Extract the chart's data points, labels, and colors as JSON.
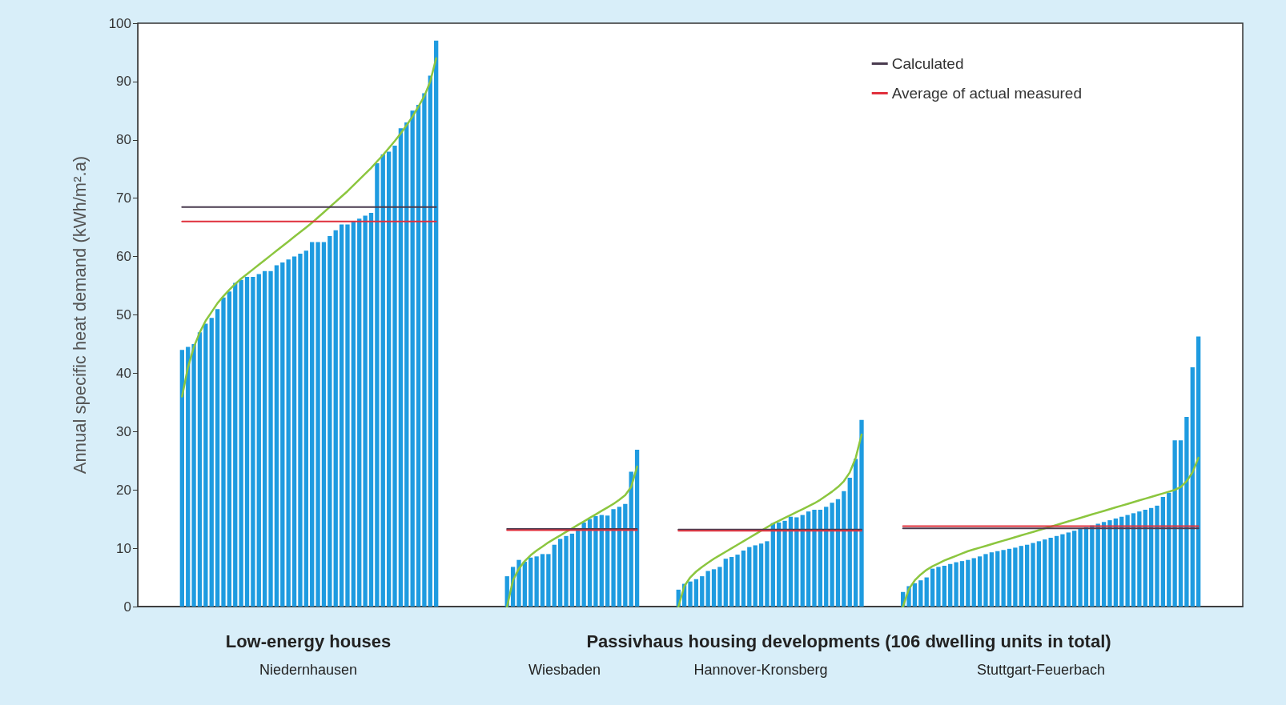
{
  "chart_data": {
    "type": "bar",
    "ylabel": "Annual specific heat demand (kWh/m².a)",
    "categories": [
      null,
      null,
      null,
      null,
      null,
      null,
      null,
      null,
      null,
      null,
      null,
      null,
      null,
      null,
      null,
      null,
      null,
      null,
      null,
      null,
      null,
      null,
      null,
      null,
      null,
      null,
      null,
      null,
      null,
      null,
      null,
      null,
      null,
      null,
      null,
      null,
      null,
      null,
      null,
      null,
      null,
      null,
      null,
      null,
      null,
      null,
      null,
      null,
      null,
      null,
      null,
      null,
      null,
      null,
      null,
      null,
      null,
      null,
      null,
      null,
      null,
      null,
      null,
      null,
      null,
      null,
      null,
      null,
      null,
      null,
      null,
      null,
      null,
      null,
      null,
      null,
      null,
      null,
      null,
      null,
      null,
      null,
      null,
      null,
      null,
      null,
      null,
      null,
      null,
      null,
      null,
      null,
      null,
      null,
      null,
      null,
      null,
      null,
      null,
      null,
      null,
      null,
      null,
      null,
      null,
      null,
      null,
      null,
      null,
      null,
      null,
      null,
      null,
      null,
      null,
      null,
      null,
      null,
      null,
      null,
      null,
      null,
      null,
      null,
      null,
      null,
      null,
      null,
      null,
      null,
      null,
      null,
      null,
      null,
      null,
      null,
      null,
      null,
      null,
      null,
      null,
      null,
      null,
      null,
      null,
      null,
      null,
      null,
      null,
      null,
      null,
      null,
      null,
      null,
      null,
      null,
      null,
      null,
      null,
      null,
      null,
      null,
      null,
      null,
      null,
      null,
      null,
      null,
      null,
      null,
      null,
      null,
      null,
      null,
      null,
      null,
      null,
      null,
      null,
      null,
      null,
      null,
      null,
      null,
      null,
      null,
      null
    ],
    "series": [
      {
        "color": "#1e9be0",
        "values": [
          null,
          null,
          null,
          null,
          null,
          null,
          null,
          44,
          44.5,
          45,
          47,
          48.5,
          49.5,
          51,
          53,
          54,
          55.5,
          56,
          56.5,
          56.5,
          57,
          57.5,
          57.5,
          58.5,
          59,
          59.5,
          60,
          60.5,
          61,
          62.5,
          62.5,
          62.5,
          63.5,
          64.5,
          65.5,
          65.5,
          66,
          66.5,
          67,
          67.5,
          76,
          77.5,
          78,
          79,
          82,
          83,
          85,
          86,
          88,
          91,
          97,
          null,
          null,
          null,
          null,
          null,
          null,
          null,
          null,
          null,
          null,
          null,
          5.2,
          6.8,
          8,
          7.7,
          8.4,
          8.6,
          9,
          9,
          10.6,
          11.6,
          12.1,
          12.5,
          13.4,
          14.4,
          15,
          15.5,
          15.7,
          15.6,
          16.7,
          17.1,
          17.6,
          23.1,
          26.9,
          null,
          null,
          null,
          null,
          null,
          null,
          2.9,
          3.9,
          4.3,
          4.7,
          5.2,
          6.1,
          6.4,
          6.8,
          8.2,
          8.5,
          8.9,
          9.6,
          10.2,
          10.5,
          10.8,
          11.2,
          14.3,
          14.4,
          14.7,
          15.4,
          15.3,
          15.7,
          16.3,
          16.6,
          16.6,
          17.1,
          17.8,
          18.4,
          19.8,
          22.1,
          25.3,
          32,
          null,
          null,
          null,
          null,
          null,
          null,
          2.5,
          3.5,
          4,
          4.5,
          5,
          6.5,
          6.8,
          7,
          7.3,
          7.6,
          7.8,
          8,
          8.3,
          8.6,
          9,
          9.3,
          9.5,
          9.7,
          9.9,
          10.1,
          10.4,
          10.6,
          10.9,
          11.2,
          11.5,
          11.8,
          12.1,
          12.4,
          12.7,
          13,
          13.3,
          13.6,
          13.9,
          14.2,
          14.5,
          14.8,
          15.1,
          15.4,
          15.7,
          16,
          16.3,
          16.6,
          16.9,
          17.3,
          18.8,
          19.5,
          28.5,
          28.5,
          32.5,
          41,
          46.3,
          null,
          null,
          null,
          null,
          null,
          null,
          null
        ]
      },
      {
        "type": "line",
        "color": "#8cc63f",
        "values": [
          null,
          null,
          null,
          null,
          null,
          null,
          null,
          36,
          41,
          44.5,
          47,
          49,
          50.5,
          52,
          53.2,
          54.3,
          55.3,
          56.2,
          57,
          57.8,
          58.6,
          59.4,
          60.2,
          61,
          61.8,
          62.6,
          63.4,
          64.2,
          65,
          65.8,
          66.7,
          67.6,
          68.5,
          69.4,
          70.3,
          71.2,
          72.2,
          73.2,
          74.2,
          75.2,
          76.3,
          77.4,
          78.6,
          79.8,
          81.1,
          82.5,
          84,
          85.7,
          87.5,
          90,
          94,
          null,
          null,
          null,
          null,
          null,
          null,
          null,
          null,
          null,
          null,
          null,
          0,
          4.5,
          6.5,
          7.8,
          8.8,
          9.6,
          10.3,
          11,
          11.6,
          12.2,
          12.8,
          13.4,
          14,
          14.6,
          15.2,
          15.8,
          16.4,
          17,
          17.6,
          18.3,
          19.1,
          20.5,
          24,
          null,
          null,
          null,
          null,
          null,
          null,
          0,
          3.5,
          5,
          6,
          6.8,
          7.5,
          8.2,
          8.8,
          9.4,
          10,
          10.6,
          11.2,
          11.8,
          12.4,
          13,
          13.6,
          14.2,
          14.7,
          15.2,
          15.7,
          16.2,
          16.7,
          17.2,
          17.7,
          18.3,
          19,
          19.7,
          20.5,
          21.5,
          23,
          25.5,
          29.5,
          null,
          null,
          null,
          null,
          null,
          null,
          0,
          3,
          4.5,
          5.5,
          6.3,
          6.9,
          7.4,
          7.9,
          8.3,
          8.7,
          9.1,
          9.5,
          9.8,
          10.1,
          10.4,
          10.7,
          11,
          11.3,
          11.6,
          11.9,
          12.2,
          12.5,
          12.8,
          13.1,
          13.4,
          13.7,
          14,
          14.3,
          14.6,
          14.9,
          15.2,
          15.5,
          15.8,
          16.1,
          16.4,
          16.7,
          17,
          17.3,
          17.6,
          17.9,
          18.2,
          18.5,
          18.8,
          19.1,
          19.4,
          19.7,
          20,
          20.5,
          21.5,
          23,
          25.5,
          null,
          null,
          null,
          null,
          null,
          null,
          null
        ]
      },
      {
        "type": "line",
        "name": "Calculated",
        "color": "#4a3b4f",
        "values": [
          null,
          null,
          null,
          null,
          null,
          null,
          null,
          68.5,
          68.5,
          68.5,
          68.5,
          68.5,
          68.5,
          68.5,
          68.5,
          68.5,
          68.5,
          68.5,
          68.5,
          68.5,
          68.5,
          68.5,
          68.5,
          68.5,
          68.5,
          68.5,
          68.5,
          68.5,
          68.5,
          68.5,
          68.5,
          68.5,
          68.5,
          68.5,
          68.5,
          68.5,
          68.5,
          68.5,
          68.5,
          68.5,
          68.5,
          68.5,
          68.5,
          68.5,
          68.5,
          68.5,
          68.5,
          68.5,
          68.5,
          68.5,
          68.5,
          null,
          null,
          null,
          null,
          null,
          null,
          null,
          null,
          null,
          null,
          null,
          13.3,
          13.3,
          13.3,
          13.3,
          13.3,
          13.3,
          13.3,
          13.3,
          13.3,
          13.3,
          13.3,
          13.3,
          13.3,
          13.3,
          13.3,
          13.3,
          13.3,
          13.3,
          13.3,
          13.3,
          13.3,
          13.3,
          13.3,
          null,
          null,
          null,
          null,
          null,
          null,
          13.2,
          13.2,
          13.2,
          13.2,
          13.2,
          13.2,
          13.2,
          13.2,
          13.2,
          13.2,
          13.2,
          13.2,
          13.2,
          13.2,
          13.2,
          13.2,
          13.2,
          13.2,
          13.2,
          13.2,
          13.2,
          13.2,
          13.2,
          13.2,
          13.2,
          13.2,
          13.2,
          13.2,
          13.2,
          13.2,
          13.2,
          13.2,
          null,
          null,
          null,
          null,
          null,
          null,
          13.4,
          13.4,
          13.4,
          13.4,
          13.4,
          13.4,
          13.4,
          13.4,
          13.4,
          13.4,
          13.4,
          13.4,
          13.4,
          13.4,
          13.4,
          13.4,
          13.4,
          13.4,
          13.4,
          13.4,
          13.4,
          13.4,
          13.4,
          13.4,
          13.4,
          13.4,
          13.4,
          13.4,
          13.4,
          13.4,
          13.4,
          13.4,
          13.4,
          13.4,
          13.4,
          13.4,
          13.4,
          13.4,
          13.4,
          13.4,
          13.4,
          13.4,
          13.4,
          13.4,
          13.4,
          13.4,
          13.4,
          13.4,
          13.4,
          13.4,
          13.4,
          null,
          null,
          null,
          null,
          null,
          null,
          null
        ]
      },
      {
        "type": "line",
        "name": "Average of actual measured",
        "color": "#e0303c",
        "values": [
          null,
          null,
          null,
          null,
          null,
          null,
          null,
          66,
          66,
          66,
          66,
          66,
          66,
          66,
          66,
          66,
          66,
          66,
          66,
          66,
          66,
          66,
          66,
          66,
          66,
          66,
          66,
          66,
          66,
          66,
          66,
          66,
          66,
          66,
          66,
          66,
          66,
          66,
          66,
          66,
          66,
          66,
          66,
          66,
          66,
          66,
          66,
          66,
          66,
          66,
          66,
          null,
          null,
          null,
          null,
          null,
          null,
          null,
          null,
          null,
          null,
          null,
          13.1,
          13.1,
          13.1,
          13.1,
          13.1,
          13.1,
          13.1,
          13.1,
          13.1,
          13.1,
          13.1,
          13.1,
          13.1,
          13.1,
          13.1,
          13.1,
          13.1,
          13.1,
          13.1,
          13.1,
          13.1,
          13.1,
          13.1,
          null,
          null,
          null,
          null,
          null,
          null,
          13,
          13,
          13,
          13,
          13,
          13,
          13,
          13,
          13,
          13,
          13,
          13,
          13,
          13,
          13,
          13,
          13,
          13,
          13,
          13,
          13,
          13,
          13,
          13,
          13,
          13,
          13,
          13,
          13,
          13,
          13,
          13,
          null,
          null,
          null,
          null,
          null,
          null,
          13.8,
          13.8,
          13.8,
          13.8,
          13.8,
          13.8,
          13.8,
          13.8,
          13.8,
          13.8,
          13.8,
          13.8,
          13.8,
          13.8,
          13.8,
          13.8,
          13.8,
          13.8,
          13.8,
          13.8,
          13.8,
          13.8,
          13.8,
          13.8,
          13.8,
          13.8,
          13.8,
          13.8,
          13.8,
          13.8,
          13.8,
          13.8,
          13.8,
          13.8,
          13.8,
          13.8,
          13.8,
          13.8,
          13.8,
          13.8,
          13.8,
          13.8,
          13.8,
          13.8,
          13.8,
          13.8,
          13.8,
          13.8,
          13.8,
          13.8,
          13.8,
          null,
          null,
          null,
          null,
          null,
          null,
          null
        ]
      }
    ],
    "ylim": [
      0,
      100
    ],
    "yticks": [
      0,
      10,
      20,
      30,
      40,
      50,
      60,
      70,
      80,
      90,
      100
    ],
    "grid": false,
    "legend": "top right",
    "tick_labels": "y",
    "annotations": [
      "Low-energy houses",
      "Niedernhausen",
      "Passivhaus housing developments (106 dwelling units in total)",
      "Wiesbaden",
      "Hannover-Kronsberg",
      "Stuttgart-Feuerbach"
    ]
  }
}
